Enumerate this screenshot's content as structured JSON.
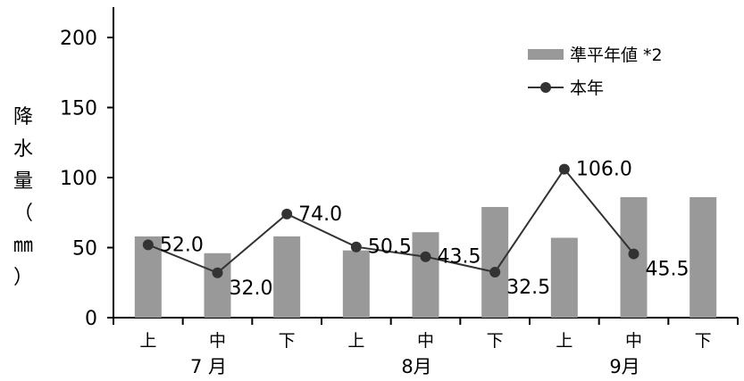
{
  "chart_data": {
    "type": "bar",
    "ylabel": "降水量（㎜）",
    "ylim": [
      0,
      200
    ],
    "yticks": [
      0,
      50,
      100,
      150,
      200
    ],
    "categories": [
      "上",
      "中",
      "下",
      "上",
      "中",
      "下",
      "上",
      "中",
      "下"
    ],
    "groups": [
      {
        "label": "7 月",
        "count": 3
      },
      {
        "label": "8月",
        "count": 3
      },
      {
        "label": "9月",
        "count": 3
      }
    ],
    "series": [
      {
        "name": "準平年値 *2",
        "kind": "bar",
        "color": "#999999",
        "values": [
          58,
          46,
          58,
          48,
          61,
          79,
          57,
          86,
          86
        ]
      },
      {
        "name": "本年",
        "kind": "line",
        "color": "#333333",
        "values": [
          52.0,
          32.0,
          74.0,
          50.5,
          43.5,
          32.5,
          106.0,
          45.5,
          null
        ],
        "data_labels": [
          "52.0",
          "32.0",
          "74.0",
          "50.5",
          "43.5",
          "32.5",
          "106.0",
          "45.5",
          null
        ]
      }
    ],
    "legend_position": "top-right",
    "grid": false
  }
}
